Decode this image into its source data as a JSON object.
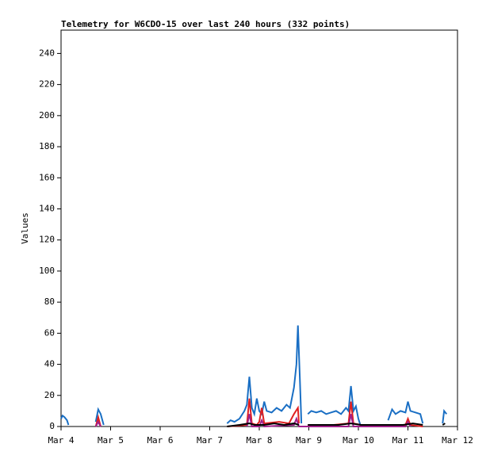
{
  "chart_data": {
    "type": "line",
    "title": "Telemetry for W6CDO-15 over last 240 hours (332 points)",
    "y_label": "Values",
    "xlim": [
      4,
      12
    ],
    "xticks": [
      {
        "value": 4,
        "label": "Mar 4"
      },
      {
        "value": 5,
        "label": "Mar 5"
      },
      {
        "value": 6,
        "label": "Mar 6"
      },
      {
        "value": 7,
        "label": "Mar 7"
      },
      {
        "value": 8,
        "label": "Mar 8"
      },
      {
        "value": 9,
        "label": "Mar 9"
      },
      {
        "value": 10,
        "label": "Mar 10"
      },
      {
        "value": 11,
        "label": "Mar 11"
      },
      {
        "value": 12,
        "label": "Mar 12"
      }
    ],
    "ylim": [
      0,
      255
    ],
    "yticks": [
      0,
      20,
      40,
      60,
      80,
      100,
      120,
      140,
      160,
      180,
      200,
      220,
      240
    ],
    "series": [
      {
        "color": "#1a6fc4",
        "x": [
          4.0,
          4.03,
          4.07,
          4.12,
          4.15,
          null,
          4.7,
          4.75,
          4.8,
          4.86,
          null,
          7.35,
          7.42,
          7.5,
          7.6,
          7.7,
          7.75,
          7.8,
          7.85,
          7.9,
          7.95,
          8.0,
          8.05,
          8.1,
          8.15,
          8.25,
          8.35,
          8.45,
          8.55,
          8.62,
          8.7,
          8.75,
          8.78,
          8.82,
          8.85,
          null,
          8.98,
          9.05,
          9.15,
          9.25,
          9.35,
          9.45,
          9.55,
          9.65,
          9.75,
          9.8,
          9.85,
          9.9,
          9.95,
          10.0,
          10.04,
          null,
          10.6,
          10.68,
          10.75,
          10.85,
          10.95,
          11.0,
          11.05,
          11.15,
          11.25,
          11.3,
          null,
          11.7,
          11.73,
          11.78
        ],
        "values": [
          5,
          7,
          6,
          4,
          1,
          null,
          3,
          11,
          8,
          1,
          null,
          2,
          4,
          3,
          5,
          10,
          14,
          32,
          12,
          8,
          18,
          10,
          8,
          16,
          10,
          9,
          12,
          10,
          14,
          12,
          25,
          40,
          65,
          30,
          2,
          null,
          8,
          10,
          9,
          10,
          8,
          9,
          10,
          8,
          12,
          10,
          26,
          10,
          13,
          5,
          1,
          null,
          4,
          11,
          8,
          10,
          9,
          16,
          10,
          9,
          8,
          2,
          null,
          2,
          10,
          8
        ]
      },
      {
        "color": "#e02020",
        "x": [
          4.7,
          4.75,
          4.8,
          null,
          7.35,
          7.75,
          7.8,
          7.85,
          7.95,
          8.0,
          8.05,
          8.1,
          8.4,
          8.6,
          8.7,
          8.78,
          8.8,
          null,
          8.98,
          9.5,
          9.8,
          9.85,
          9.9,
          10.05,
          10.6,
          10.95,
          11.0,
          11.05,
          11.3
        ],
        "values": [
          0,
          6,
          0,
          null,
          0,
          1,
          18,
          2,
          1,
          3,
          12,
          2,
          3,
          2,
          8,
          12,
          2,
          null,
          1,
          1,
          2,
          16,
          2,
          1,
          0,
          1,
          5,
          1,
          0
        ]
      },
      {
        "color": "#a0208a",
        "x": [
          4.7,
          4.75,
          4.8,
          null,
          7.75,
          7.8,
          7.85,
          8.0,
          8.05,
          8.1,
          8.7,
          8.75,
          8.8,
          9.8,
          9.85,
          9.9,
          10.95,
          11.0,
          11.05
        ],
        "values": [
          0,
          3,
          0,
          null,
          0,
          8,
          0,
          0,
          4,
          0,
          1,
          5,
          0,
          0,
          8,
          0,
          0,
          3,
          0
        ]
      },
      {
        "color": "#000000",
        "x": [
          7.35,
          7.6,
          7.8,
          7.9,
          8.1,
          8.3,
          8.5,
          8.7,
          8.8,
          null,
          8.98,
          9.3,
          9.6,
          9.85,
          10.05,
          10.6,
          10.9,
          11.1,
          11.3,
          null,
          11.7,
          11.75
        ],
        "values": [
          0,
          1,
          2,
          1,
          1,
          2,
          1,
          2,
          1,
          null,
          1,
          1,
          1,
          2,
          1,
          1,
          1,
          2,
          1,
          null,
          1,
          2
        ]
      }
    ]
  }
}
